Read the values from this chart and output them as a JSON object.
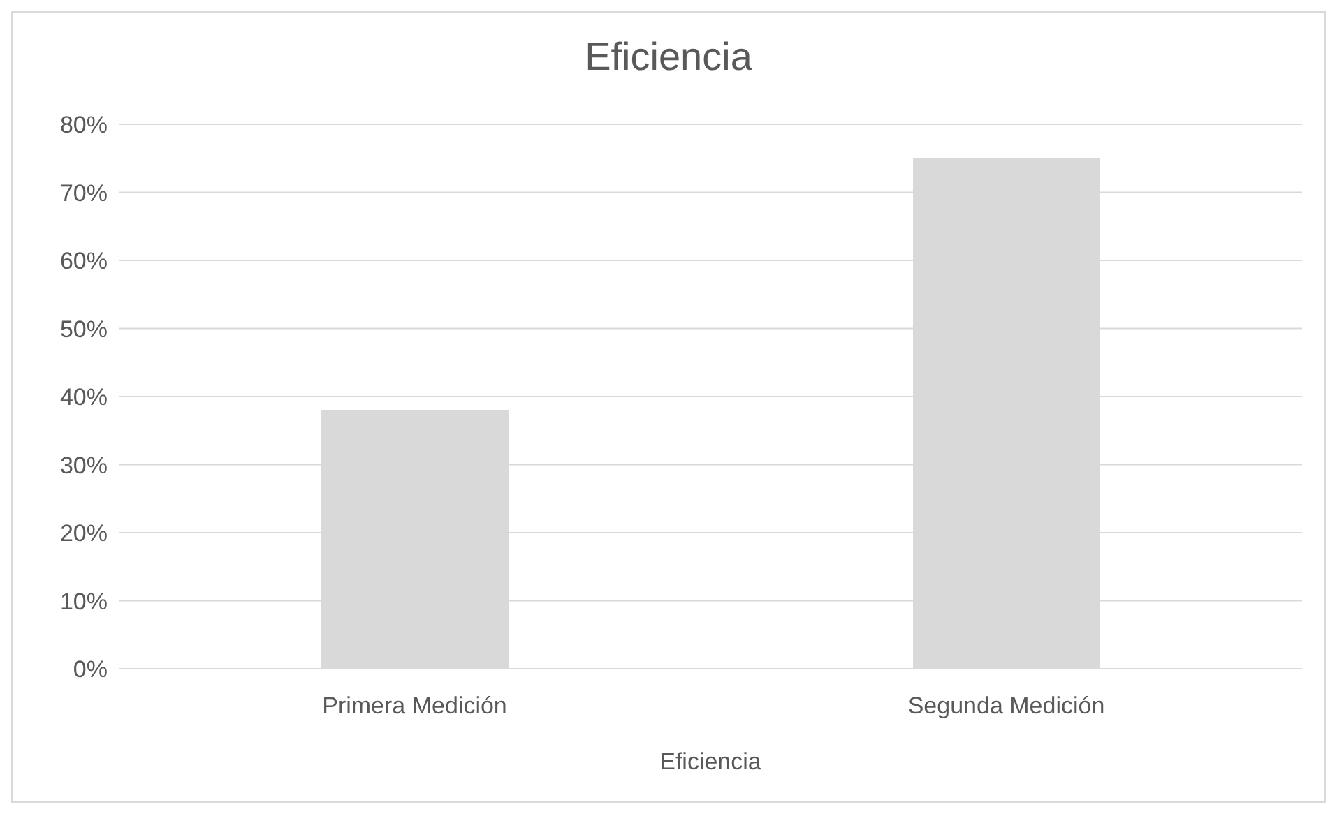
{
  "chart_data": {
    "type": "bar",
    "title": "Eficiencia",
    "xlabel": "Eficiencia",
    "categories": [
      "Primera Medición",
      "Segunda Medición"
    ],
    "values": [
      38,
      75
    ],
    "color": "#d9d9d9",
    "ylim": [
      0,
      80
    ],
    "yticks": [
      {
        "value": 0,
        "label": "0%"
      },
      {
        "value": 10,
        "label": "10%"
      },
      {
        "value": 20,
        "label": "20%"
      },
      {
        "value": 30,
        "label": "30%"
      },
      {
        "value": 40,
        "label": "40%"
      },
      {
        "value": 50,
        "label": "50%"
      },
      {
        "value": 60,
        "label": "60%"
      },
      {
        "value": 70,
        "label": "70%"
      },
      {
        "value": 80,
        "label": "80%"
      }
    ],
    "grid": "y",
    "legend": false
  }
}
